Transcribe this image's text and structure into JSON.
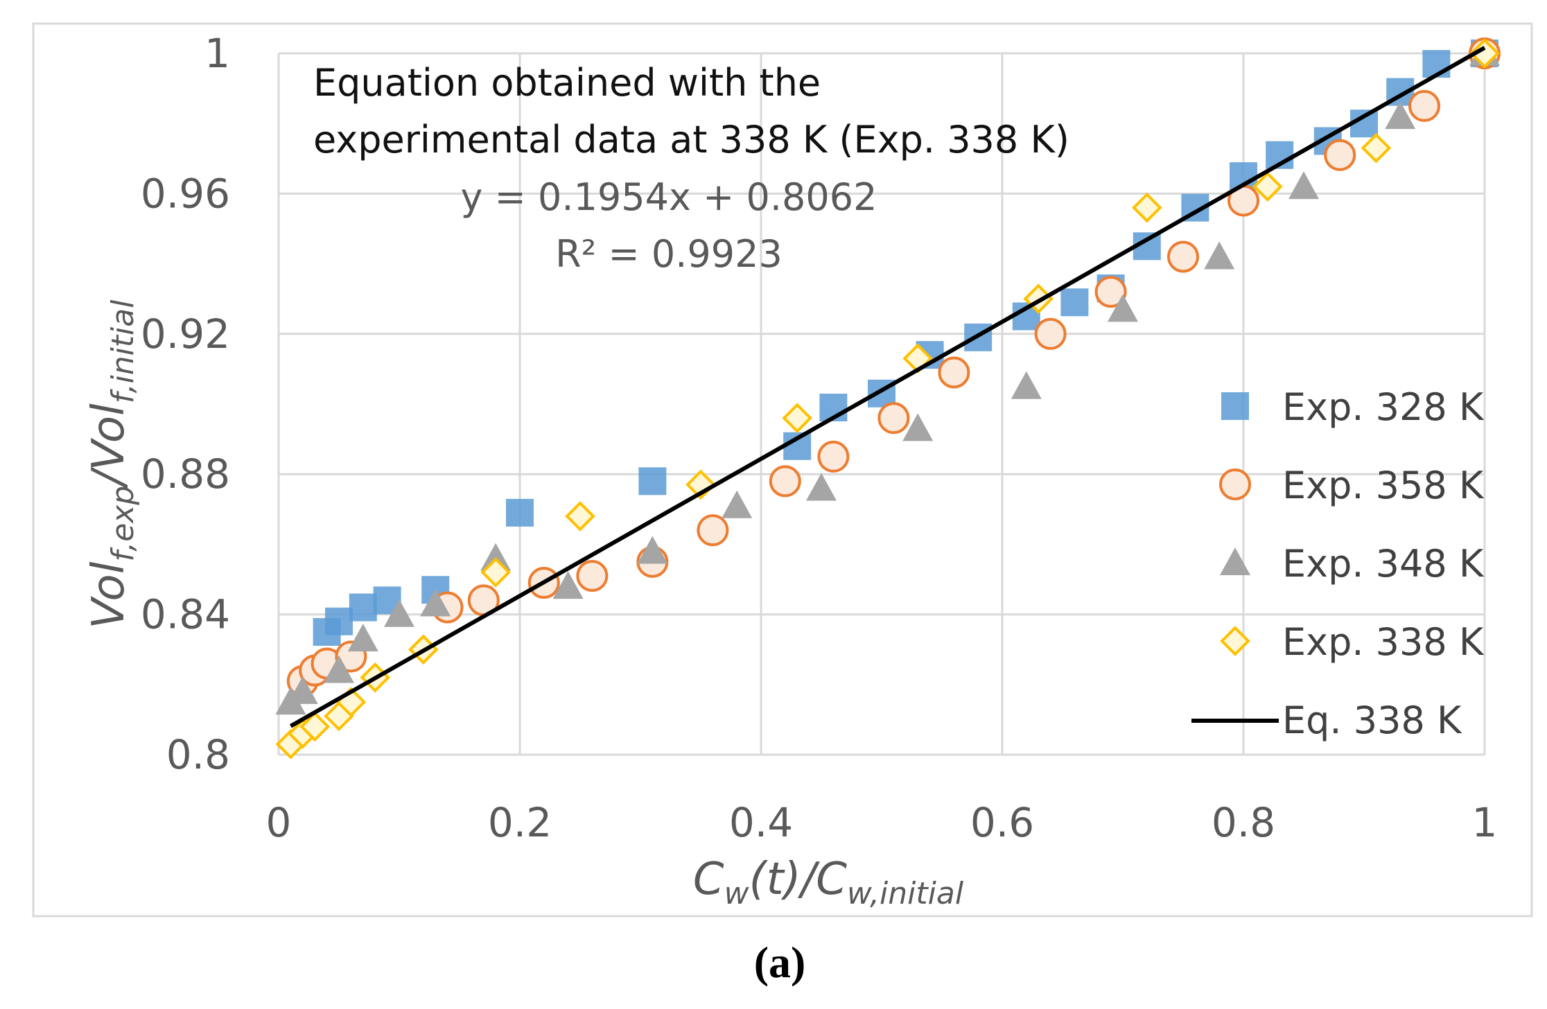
{
  "chart_data": {
    "type": "scatter",
    "xlim": [
      0,
      1
    ],
    "ylim": [
      0.8,
      1.0
    ],
    "x_ticks": [
      "0",
      "0.2",
      "0.4",
      "0.6",
      "0.8",
      "1"
    ],
    "y_ticks": [
      "0.8",
      "0.84",
      "0.88",
      "0.92",
      "0.96",
      "1"
    ],
    "grid": true,
    "legend_position": "right",
    "xlabel": {
      "main": "C",
      "sub1": "w",
      "mid": "(t)/C",
      "sub2": "w,initial"
    },
    "ylabel": {
      "p1": "Vol",
      "s1": "f,exp",
      "p2": "/Vol",
      "s2": "f,initial"
    },
    "annotation": {
      "line1": "Equation obtained with the",
      "line2": "experimental data at 338 K (Exp. 338 K)",
      "equation": "y = 0.1954x + 0.8062",
      "r2": "R² = 0.9923"
    },
    "caption": "(a)",
    "series": [
      {
        "name": "Exp. 328 K",
        "marker": "square",
        "color": "#5B9BD5",
        "points": [
          [
            0.04,
            0.835
          ],
          [
            0.05,
            0.838
          ],
          [
            0.07,
            0.842
          ],
          [
            0.09,
            0.844
          ],
          [
            0.13,
            0.847
          ],
          [
            0.2,
            0.869
          ],
          [
            0.31,
            0.878
          ],
          [
            0.43,
            0.888
          ],
          [
            0.46,
            0.899
          ],
          [
            0.5,
            0.903
          ],
          [
            0.54,
            0.914
          ],
          [
            0.58,
            0.919
          ],
          [
            0.62,
            0.925
          ],
          [
            0.66,
            0.929
          ],
          [
            0.69,
            0.933
          ],
          [
            0.72,
            0.945
          ],
          [
            0.76,
            0.956
          ],
          [
            0.8,
            0.965
          ],
          [
            0.83,
            0.971
          ],
          [
            0.87,
            0.975
          ],
          [
            0.9,
            0.98
          ],
          [
            0.93,
            0.989
          ],
          [
            0.96,
            0.997
          ],
          [
            1.0,
            1.0
          ]
        ]
      },
      {
        "name": "Exp. 358 K",
        "marker": "circle",
        "color": "#ED7D31",
        "points": [
          [
            0.02,
            0.821
          ],
          [
            0.03,
            0.824
          ],
          [
            0.04,
            0.826
          ],
          [
            0.06,
            0.828
          ],
          [
            0.14,
            0.842
          ],
          [
            0.17,
            0.844
          ],
          [
            0.22,
            0.849
          ],
          [
            0.26,
            0.851
          ],
          [
            0.31,
            0.855
          ],
          [
            0.36,
            0.864
          ],
          [
            0.42,
            0.878
          ],
          [
            0.46,
            0.885
          ],
          [
            0.51,
            0.896
          ],
          [
            0.56,
            0.909
          ],
          [
            0.64,
            0.92
          ],
          [
            0.69,
            0.932
          ],
          [
            0.75,
            0.942
          ],
          [
            0.8,
            0.958
          ],
          [
            0.88,
            0.971
          ],
          [
            0.95,
            0.985
          ],
          [
            1.0,
            1.0
          ]
        ]
      },
      {
        "name": "Exp. 348 K",
        "marker": "triangle",
        "color": "#A5A5A5",
        "points": [
          [
            0.01,
            0.815
          ],
          [
            0.02,
            0.818
          ],
          [
            0.05,
            0.824
          ],
          [
            0.07,
            0.833
          ],
          [
            0.1,
            0.84
          ],
          [
            0.13,
            0.843
          ],
          [
            0.18,
            0.856
          ],
          [
            0.24,
            0.848
          ],
          [
            0.31,
            0.858
          ],
          [
            0.38,
            0.871
          ],
          [
            0.45,
            0.876
          ],
          [
            0.53,
            0.893
          ],
          [
            0.62,
            0.905
          ],
          [
            0.7,
            0.927
          ],
          [
            0.78,
            0.942
          ],
          [
            0.85,
            0.962
          ],
          [
            0.93,
            0.982
          ],
          [
            1.0,
            1.0
          ]
        ]
      },
      {
        "name": "Exp. 338 K",
        "marker": "diamond",
        "color": "#FFC000",
        "points": [
          [
            0.01,
            0.803
          ],
          [
            0.02,
            0.806
          ],
          [
            0.03,
            0.808
          ],
          [
            0.05,
            0.811
          ],
          [
            0.06,
            0.815
          ],
          [
            0.08,
            0.822
          ],
          [
            0.12,
            0.83
          ],
          [
            0.18,
            0.852
          ],
          [
            0.25,
            0.868
          ],
          [
            0.35,
            0.877
          ],
          [
            0.43,
            0.896
          ],
          [
            0.53,
            0.913
          ],
          [
            0.63,
            0.93
          ],
          [
            0.72,
            0.956
          ],
          [
            0.82,
            0.962
          ],
          [
            0.91,
            0.973
          ],
          [
            1.0,
            1.0
          ]
        ]
      },
      {
        "name": "Eq. 338 K",
        "marker": "line",
        "color": "#000000",
        "slope": 0.1954,
        "intercept": 0.8062,
        "x_range": [
          0.01,
          1.0
        ]
      }
    ]
  }
}
